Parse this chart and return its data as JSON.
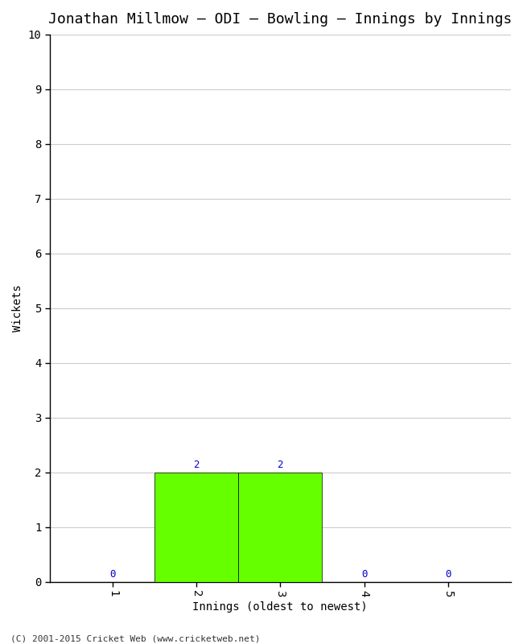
{
  "title": "Jonathan Millmow – ODI – Bowling – Innings by Innings",
  "xlabel": "Innings (oldest to newest)",
  "ylabel": "Wickets",
  "categories": [
    1,
    2,
    3,
    4,
    5
  ],
  "values": [
    0,
    2,
    2,
    0,
    0
  ],
  "bar_color": "#66ff00",
  "bar_edge_color": "#000000",
  "ylim": [
    0,
    10
  ],
  "yticks": [
    0,
    1,
    2,
    3,
    4,
    5,
    6,
    7,
    8,
    9,
    10
  ],
  "xticks": [
    1,
    2,
    3,
    4,
    5
  ],
  "annotation_color": "#0000cc",
  "background_color": "#ffffff",
  "plot_bg_color": "#ffffff",
  "grid_color": "#cccccc",
  "title_fontsize": 13,
  "axis_label_fontsize": 10,
  "tick_fontsize": 10,
  "annotation_fontsize": 9,
  "footer": "(C) 2001-2015 Cricket Web (www.cricketweb.net)"
}
